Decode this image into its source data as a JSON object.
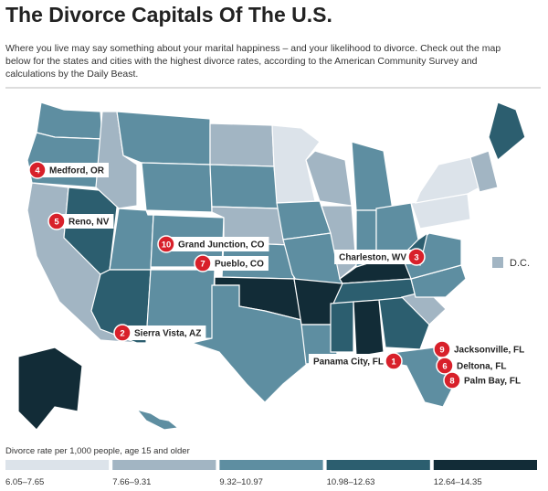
{
  "header": {
    "title": "The Divorce Capitals Of The U.S.",
    "subtitle_lines": [
      "Where you live may say something about your marital happiness – and your likelihood to divorce. Check out the map",
      "below for the states and cities with the highest divorce rates, according to the American Community Survey and",
      "calculations by the Daily Beast."
    ]
  },
  "cities": [
    {
      "rank": 1,
      "name": "Panama City, FL"
    },
    {
      "rank": 2,
      "name": "Sierra Vista, AZ"
    },
    {
      "rank": 3,
      "name": "Charleston, WV"
    },
    {
      "rank": 4,
      "name": "Medford, OR"
    },
    {
      "rank": 5,
      "name": "Reno, NV"
    },
    {
      "rank": 6,
      "name": "Deltona, FL"
    },
    {
      "rank": 7,
      "name": "Pueblo, CO"
    },
    {
      "rank": 8,
      "name": "Palm Bay, FL"
    },
    {
      "rank": 9,
      "name": "Jacksonville, FL"
    },
    {
      "rank": 10,
      "name": "Grand Junction, CO"
    }
  ],
  "dc_label": "D.C.",
  "legend": {
    "title": "Divorce rate per 1,000 people, age 15 and older",
    "bins": [
      {
        "label": "6.05–7.65",
        "color": "#dce3ea"
      },
      {
        "label": "7.66–9.31",
        "color": "#a2b5c3"
      },
      {
        "label": "9.32–10.97",
        "color": "#5e8ea1"
      },
      {
        "label": "10.98–12.63",
        "color": "#2c5e6f"
      },
      {
        "label": "12.64–14.35",
        "color": "#122c37"
      }
    ]
  }
}
